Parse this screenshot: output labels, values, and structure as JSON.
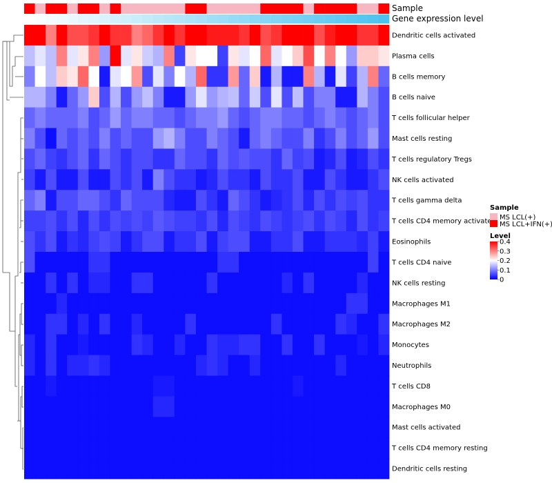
{
  "chart_data": {
    "type": "heatmap",
    "title": "",
    "annotations": {
      "sample_label": "Sample",
      "gene_label": "Gene expression level",
      "sample_groups": [
        1,
        0,
        1,
        1,
        0,
        1,
        1,
        0,
        1,
        0,
        0,
        0,
        0,
        0,
        0,
        1,
        1,
        0,
        0,
        0,
        0,
        0,
        1,
        1,
        1,
        1,
        0,
        1,
        1,
        1,
        1,
        0,
        0,
        1
      ],
      "gene_expression": [
        0.0,
        0.03,
        0.06,
        0.09,
        0.12,
        0.15,
        0.18,
        0.21,
        0.24,
        0.27,
        0.3,
        0.33,
        0.36,
        0.39,
        0.42,
        0.45,
        0.48,
        0.52,
        0.55,
        0.58,
        0.61,
        0.64,
        0.67,
        0.7,
        0.73,
        0.76,
        0.79,
        0.82,
        0.85,
        0.88,
        0.91,
        0.94,
        0.97,
        1.0
      ]
    },
    "rows": [
      "Dendritic cells activated",
      "Plasma cells",
      "B cells memory",
      "B cells naive",
      "T cells follicular helper",
      "Mast cells resting",
      "T cells regulatory  Tregs",
      "NK cells activated",
      "T cells gamma delta",
      "T cells CD4 memory activated",
      "Eosinophils",
      "T cells CD4 naive",
      "NK cells resting",
      "Macrophages M1",
      "Macrophages M2",
      "Monocytes",
      "Neutrophils",
      "T cells CD8",
      "Macrophages M0",
      "Mast cells activated",
      "T cells CD4 memory resting",
      "Dendritic cells resting"
    ],
    "columns": 34,
    "values": [
      [
        0.4,
        0.4,
        0.3,
        0.4,
        0.34,
        0.34,
        0.36,
        0.4,
        0.36,
        0.36,
        0.3,
        0.32,
        0.36,
        0.4,
        0.36,
        0.4,
        0.4,
        0.38,
        0.38,
        0.38,
        0.36,
        0.4,
        0.34,
        0.36,
        0.4,
        0.4,
        0.4,
        0.34,
        0.38,
        0.4,
        0.4,
        0.36,
        0.36,
        0.4
      ],
      [
        0.15,
        0.18,
        0.15,
        0.3,
        0.18,
        0.22,
        0.3,
        0.12,
        0.4,
        0.18,
        0.22,
        0.16,
        0.14,
        0.3,
        0.05,
        0.22,
        0.2,
        0.2,
        0.05,
        0.22,
        0.18,
        0.2,
        0.32,
        0.18,
        0.2,
        0.24,
        0.34,
        0.2,
        0.3,
        0.2,
        0.12,
        0.24,
        0.24,
        0.22
      ],
      [
        0.1,
        0.2,
        0.15,
        0.24,
        0.22,
        0.32,
        0.2,
        0.02,
        0.18,
        0.2,
        0.28,
        0.06,
        0.18,
        0.1,
        0.2,
        0.14,
        0.32,
        0.04,
        0.04,
        0.28,
        0.08,
        0.24,
        0.02,
        0.14,
        0.02,
        0.02,
        0.3,
        0.14,
        0.02,
        0.18,
        0.05,
        0.14,
        0.3,
        0.08
      ],
      [
        0.14,
        0.14,
        0.1,
        0.02,
        0.08,
        0.12,
        0.24,
        0.06,
        0.14,
        0.06,
        0.12,
        0.15,
        0.1,
        0.02,
        0.02,
        0.12,
        0.18,
        0.12,
        0.14,
        0.15,
        0.08,
        0.16,
        0.06,
        0.18,
        0.06,
        0.15,
        0.06,
        0.1,
        0.1,
        0.02,
        0.02,
        0.14,
        0.1,
        0.06
      ],
      [
        0.08,
        0.1,
        0.08,
        0.08,
        0.08,
        0.1,
        0.06,
        0.08,
        0.12,
        0.08,
        0.1,
        0.1,
        0.08,
        0.08,
        0.06,
        0.08,
        0.1,
        0.1,
        0.12,
        0.08,
        0.06,
        0.08,
        0.1,
        0.1,
        0.08,
        0.08,
        0.06,
        0.08,
        0.1,
        0.08,
        0.06,
        0.08,
        0.1,
        0.06
      ],
      [
        0.1,
        0.06,
        0.01,
        0.08,
        0.06,
        0.08,
        0.06,
        0.1,
        0.06,
        0.08,
        0.06,
        0.06,
        0.12,
        0.14,
        0.1,
        0.06,
        0.06,
        0.1,
        0.08,
        0.06,
        0.02,
        0.08,
        0.1,
        0.08,
        0.06,
        0.06,
        0.1,
        0.04,
        0.06,
        0.1,
        0.06,
        0.08,
        0.12,
        0.06
      ],
      [
        0.06,
        0.08,
        0.05,
        0.04,
        0.06,
        0.08,
        0.04,
        0.08,
        0.06,
        0.04,
        0.06,
        0.06,
        0.04,
        0.04,
        0.08,
        0.06,
        0.06,
        0.04,
        0.08,
        0.06,
        0.07,
        0.06,
        0.06,
        0.04,
        0.08,
        0.05,
        0.06,
        0.02,
        0.03,
        0.06,
        0.02,
        0.03,
        0.06,
        0.04
      ],
      [
        0.05,
        0.02,
        0.06,
        0.02,
        0.02,
        0.06,
        0.02,
        0.02,
        0.06,
        0.04,
        0.06,
        0.02,
        0.1,
        0.06,
        0.04,
        0.04,
        0.02,
        0.03,
        0.06,
        0.04,
        0.04,
        0.02,
        0.06,
        0.04,
        0.04,
        0.06,
        0.02,
        0.02,
        0.06,
        0.04,
        0.02,
        0.02,
        0.04,
        0.06
      ],
      [
        0.08,
        0.1,
        0.02,
        0.06,
        0.06,
        0.08,
        0.08,
        0.06,
        0.04,
        0.08,
        0.06,
        0.06,
        0.06,
        0.03,
        0.02,
        0.02,
        0.06,
        0.04,
        0.02,
        0.08,
        0.06,
        0.04,
        0.02,
        0.03,
        0.04,
        0.06,
        0.03,
        0.06,
        0.04,
        0.06,
        0.05,
        0.06,
        0.04,
        0.04
      ],
      [
        0.05,
        0.05,
        0.06,
        0.04,
        0.06,
        0.03,
        0.06,
        0.04,
        0.06,
        0.05,
        0.06,
        0.05,
        0.07,
        0.06,
        0.05,
        0.05,
        0.04,
        0.06,
        0.03,
        0.06,
        0.05,
        0.04,
        0.06,
        0.05,
        0.04,
        0.05,
        0.06,
        0.04,
        0.06,
        0.05,
        0.03,
        0.06,
        0.04,
        0.05
      ],
      [
        0.06,
        0.04,
        0.06,
        0.02,
        0.04,
        0.03,
        0.05,
        0.06,
        0.05,
        0.02,
        0.04,
        0.06,
        0.06,
        0.02,
        0.04,
        0.04,
        0.06,
        0.02,
        0.05,
        0.06,
        0.06,
        0.02,
        0.02,
        0.04,
        0.04,
        0.06,
        0.02,
        0.02,
        0.04,
        0.04,
        0.04,
        0.03,
        0.05,
        0.02
      ],
      [
        0.06,
        0.01,
        0.01,
        0.01,
        0.01,
        0.01,
        0.04,
        0.04,
        0.01,
        0.01,
        0.01,
        0.01,
        0.01,
        0.01,
        0.01,
        0.01,
        0.01,
        0.01,
        0.04,
        0.04,
        0.01,
        0.01,
        0.01,
        0.01,
        0.01,
        0.01,
        0.01,
        0.01,
        0.01,
        0.01,
        0.01,
        0.01,
        0.05,
        0.01
      ],
      [
        0.01,
        0.01,
        0.04,
        0.01,
        0.04,
        0.01,
        0.03,
        0.03,
        0.01,
        0.01,
        0.04,
        0.04,
        0.01,
        0.01,
        0.01,
        0.01,
        0.01,
        0.04,
        0.01,
        0.01,
        0.01,
        0.01,
        0.01,
        0.01,
        0.03,
        0.01,
        0.04,
        0.01,
        0.01,
        0.01,
        0.01,
        0.03,
        0.01,
        0.01
      ],
      [
        0.01,
        0.01,
        0.01,
        0.03,
        0.01,
        0.01,
        0.01,
        0.01,
        0.01,
        0.01,
        0.01,
        0.01,
        0.01,
        0.01,
        0.01,
        0.01,
        0.01,
        0.01,
        0.01,
        0.01,
        0.01,
        0.01,
        0.01,
        0.01,
        0.01,
        0.01,
        0.01,
        0.01,
        0.01,
        0.01,
        0.04,
        0.04,
        0.01,
        0.01
      ],
      [
        0.01,
        0.01,
        0.04,
        0.04,
        0.01,
        0.03,
        0.01,
        0.04,
        0.01,
        0.01,
        0.03,
        0.01,
        0.01,
        0.01,
        0.01,
        0.04,
        0.01,
        0.01,
        0.01,
        0.01,
        0.01,
        0.01,
        0.01,
        0.04,
        0.01,
        0.01,
        0.01,
        0.01,
        0.01,
        0.04,
        0.03,
        0.01,
        0.01,
        0.04
      ],
      [
        0.03,
        0.01,
        0.04,
        0.01,
        0.01,
        0.02,
        0.01,
        0.01,
        0.01,
        0.01,
        0.04,
        0.03,
        0.01,
        0.01,
        0.03,
        0.01,
        0.01,
        0.04,
        0.03,
        0.03,
        0.04,
        0.04,
        0.01,
        0.01,
        0.04,
        0.01,
        0.01,
        0.04,
        0.01,
        0.01,
        0.01,
        0.02,
        0.01,
        0.03
      ],
      [
        0.03,
        0.01,
        0.04,
        0.01,
        0.03,
        0.03,
        0.04,
        0.03,
        0.01,
        0.01,
        0.01,
        0.01,
        0.01,
        0.01,
        0.01,
        0.01,
        0.03,
        0.04,
        0.03,
        0.01,
        0.01,
        0.03,
        0.01,
        0.01,
        0.01,
        0.01,
        0.01,
        0.01,
        0.01,
        0.03,
        0.01,
        0.01,
        0.01,
        0.01
      ],
      [
        0.01,
        0.01,
        0.02,
        0.01,
        0.01,
        0.01,
        0.01,
        0.01,
        0.01,
        0.01,
        0.01,
        0.01,
        0.02,
        0.02,
        0.01,
        0.01,
        0.01,
        0.01,
        0.01,
        0.01,
        0.01,
        0.01,
        0.01,
        0.01,
        0.01,
        0.02,
        0.01,
        0.01,
        0.01,
        0.01,
        0.01,
        0.01,
        0.01,
        0.01
      ],
      [
        0.01,
        0.01,
        0.01,
        0.01,
        0.01,
        0.01,
        0.01,
        0.01,
        0.01,
        0.01,
        0.01,
        0.01,
        0.03,
        0.03,
        0.01,
        0.01,
        0.01,
        0.01,
        0.01,
        0.01,
        0.01,
        0.01,
        0.01,
        0.01,
        0.01,
        0.01,
        0.01,
        0.01,
        0.01,
        0.01,
        0.01,
        0.01,
        0.01,
        0.01
      ],
      [
        0.01,
        0.01,
        0.01,
        0.01,
        0.01,
        0.01,
        0.01,
        0.01,
        0.01,
        0.01,
        0.01,
        0.01,
        0.01,
        0.01,
        0.01,
        0.01,
        0.01,
        0.01,
        0.01,
        0.01,
        0.01,
        0.01,
        0.01,
        0.01,
        0.01,
        0.01,
        0.01,
        0.01,
        0.01,
        0.01,
        0.01,
        0.01,
        0.01,
        0.01
      ],
      [
        0.01,
        0.01,
        0.01,
        0.01,
        0.01,
        0.01,
        0.01,
        0.01,
        0.01,
        0.01,
        0.01,
        0.01,
        0.01,
        0.01,
        0.01,
        0.01,
        0.01,
        0.01,
        0.01,
        0.01,
        0.01,
        0.01,
        0.01,
        0.01,
        0.01,
        0.01,
        0.01,
        0.01,
        0.01,
        0.01,
        0.01,
        0.01,
        0.01,
        0.01
      ],
      [
        0.01,
        0.01,
        0.01,
        0.01,
        0.01,
        0.01,
        0.01,
        0.01,
        0.01,
        0.01,
        0.01,
        0.01,
        0.01,
        0.01,
        0.01,
        0.01,
        0.01,
        0.01,
        0.01,
        0.01,
        0.01,
        0.01,
        0.01,
        0.01,
        0.01,
        0.01,
        0.01,
        0.01,
        0.01,
        0.01,
        0.01,
        0.01,
        0.01,
        0.01
      ]
    ],
    "legend": {
      "sample_title": "Sample",
      "sample_entries": [
        {
          "label": "MS LCL(+)",
          "color": "#f7b6c2"
        },
        {
          "label": "MS LCL+IFN(+)",
          "color": "#ff0000"
        }
      ],
      "level_title": "Level",
      "level_ticks": [
        "0.4",
        "0.3",
        "0.2",
        "0.1",
        "0"
      ],
      "level_values": [
        0.4,
        0.3,
        0.2,
        0.1,
        0
      ],
      "placement": "right"
    },
    "colors": {
      "low": "#0000ff",
      "mid": "#ffffff",
      "high": "#ff0000",
      "gene_low": "#ffffff",
      "gene_high": "#4cc2f0"
    },
    "vmin": 0,
    "vmax": 0.4
  }
}
